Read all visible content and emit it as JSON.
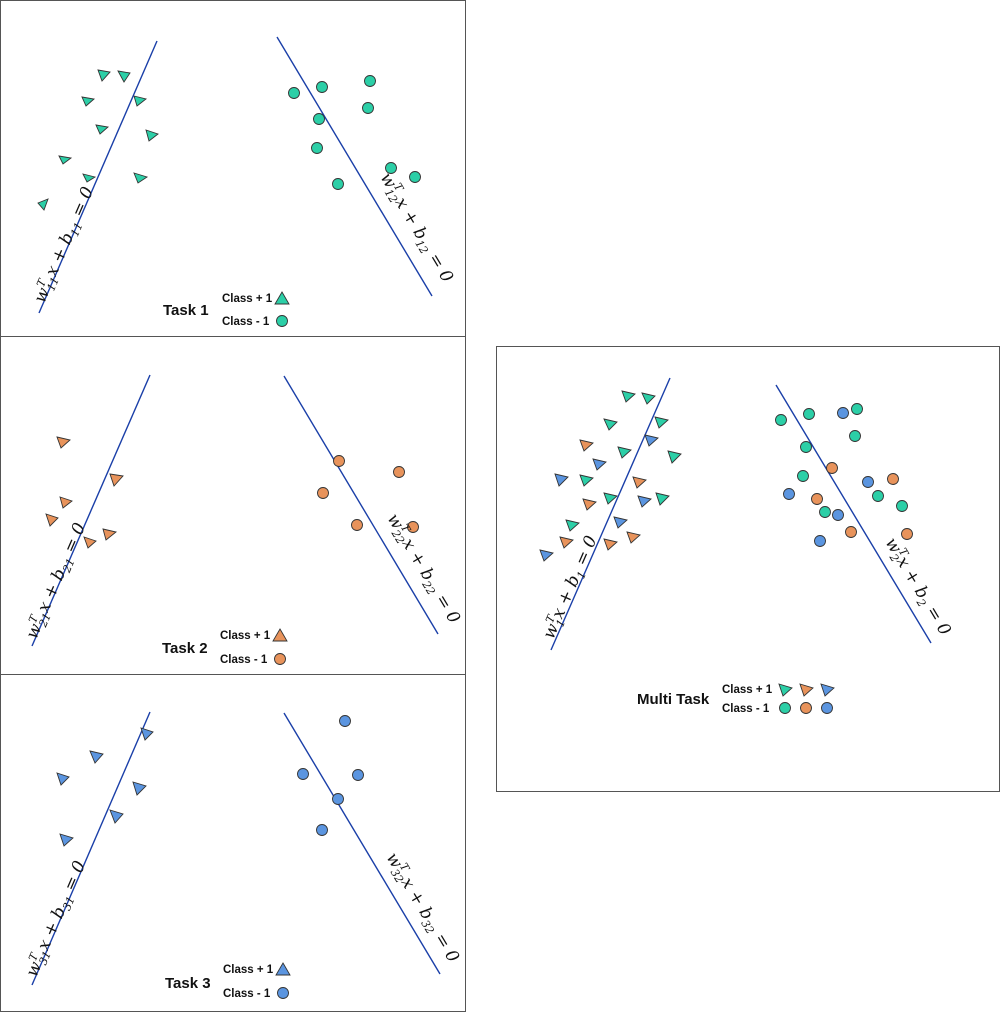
{
  "colors": {
    "task1": "#2ccfa7",
    "task2": "#e8935b",
    "task3": "#5b95e0",
    "line": "#1a3fa8",
    "stroke": "#333333",
    "frame": "#555555"
  },
  "legend": {
    "class_pos": "Class + 1",
    "class_neg": "Class - 1"
  },
  "panels": {
    "task1": {
      "title": "Task 1",
      "eq_left": {
        "w": "w",
        "sup": "T",
        "wsub": "11",
        "mid": "x + b",
        "bsub": "11",
        "end": " = 0"
      },
      "eq_right": {
        "w": "w",
        "sup": "T",
        "wsub": "12",
        "mid": "x + b",
        "bsub": "12",
        "end": " = 0"
      }
    },
    "task2": {
      "title": "Task 2",
      "eq_left": {
        "w": "w",
        "sup": "T",
        "wsub": "21",
        "mid": "x + b",
        "bsub": "21",
        "end": " = 0"
      },
      "eq_right": {
        "w": "w",
        "sup": "T",
        "wsub": "22",
        "mid": "x + b",
        "bsub": "22",
        "end": " = 0"
      }
    },
    "task3": {
      "title": "Task 3",
      "eq_left": {
        "w": "w",
        "sup": "T",
        "wsub": "31",
        "mid": "x + b",
        "bsub": "31",
        "end": " = 0"
      },
      "eq_right": {
        "w": "w",
        "sup": "T",
        "wsub": "32",
        "mid": "x + b",
        "bsub": "32",
        "end": " = 0"
      }
    },
    "multi": {
      "title": "Multi Task",
      "eq_left": {
        "w": "w",
        "sup": "T",
        "wsub": "1",
        "mid": "x + b",
        "bsub": "1",
        "end": " = 0"
      },
      "eq_right": {
        "w": "w",
        "sup": "T",
        "wsub": "2",
        "mid": "x + b",
        "bsub": "2",
        "end": " = 0"
      }
    }
  }
}
